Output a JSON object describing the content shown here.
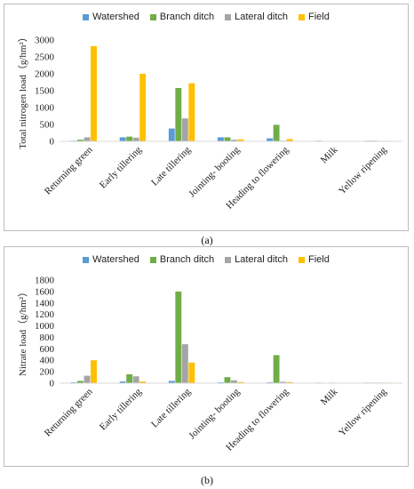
{
  "chart_data": [
    {
      "panel": "(a)",
      "type": "bar",
      "ylabel": "Total nitrogen load（g/hm²）",
      "ylim": [
        0,
        3000
      ],
      "yticks": [
        0,
        500,
        1000,
        1500,
        2000,
        2500,
        3000
      ],
      "grid": false,
      "legend_position": "top",
      "categories": [
        "Returning green",
        "Early tillering",
        "Late tillering",
        "Jointing- booting",
        "Heading to flowering",
        "Milk",
        "Yellow ripening"
      ],
      "series": [
        {
          "name": "Watershed",
          "color": "#5b9bd5",
          "values": [
            20,
            120,
            380,
            120,
            90,
            20,
            20
          ]
        },
        {
          "name": "Branch ditch",
          "color": "#70ad47",
          "values": [
            50,
            140,
            1580,
            120,
            490,
            0,
            20
          ]
        },
        {
          "name": "Lateral ditch",
          "color": "#a5a5a5",
          "values": [
            120,
            110,
            680,
            50,
            20,
            10,
            15
          ]
        },
        {
          "name": "Field",
          "color": "#ffc000",
          "values": [
            2820,
            2000,
            1720,
            60,
            70,
            0,
            15
          ]
        }
      ]
    },
    {
      "panel": "(b)",
      "type": "bar",
      "ylabel": "Nitrate load（g/hm²）",
      "ylim": [
        0,
        1800
      ],
      "yticks": [
        0,
        200,
        400,
        600,
        800,
        1000,
        1200,
        1400,
        1600,
        1800
      ],
      "grid": false,
      "legend_position": "top",
      "categories": [
        "Returning green",
        "Early tillering",
        "Late tillering",
        "Jointing- booting",
        "Heading to flowering",
        "Milk",
        "Yellow ripening"
      ],
      "series": [
        {
          "name": "Watershed",
          "color": "#5b9bd5",
          "values": [
            15,
            30,
            40,
            15,
            15,
            10,
            10
          ]
        },
        {
          "name": "Branch ditch",
          "color": "#70ad47",
          "values": [
            40,
            155,
            1600,
            105,
            490,
            0,
            10
          ]
        },
        {
          "name": "Lateral ditch",
          "color": "#a5a5a5",
          "values": [
            130,
            120,
            680,
            50,
            25,
            10,
            10
          ]
        },
        {
          "name": "Field",
          "color": "#ffc000",
          "values": [
            400,
            30,
            360,
            20,
            20,
            0,
            10
          ]
        }
      ]
    }
  ]
}
